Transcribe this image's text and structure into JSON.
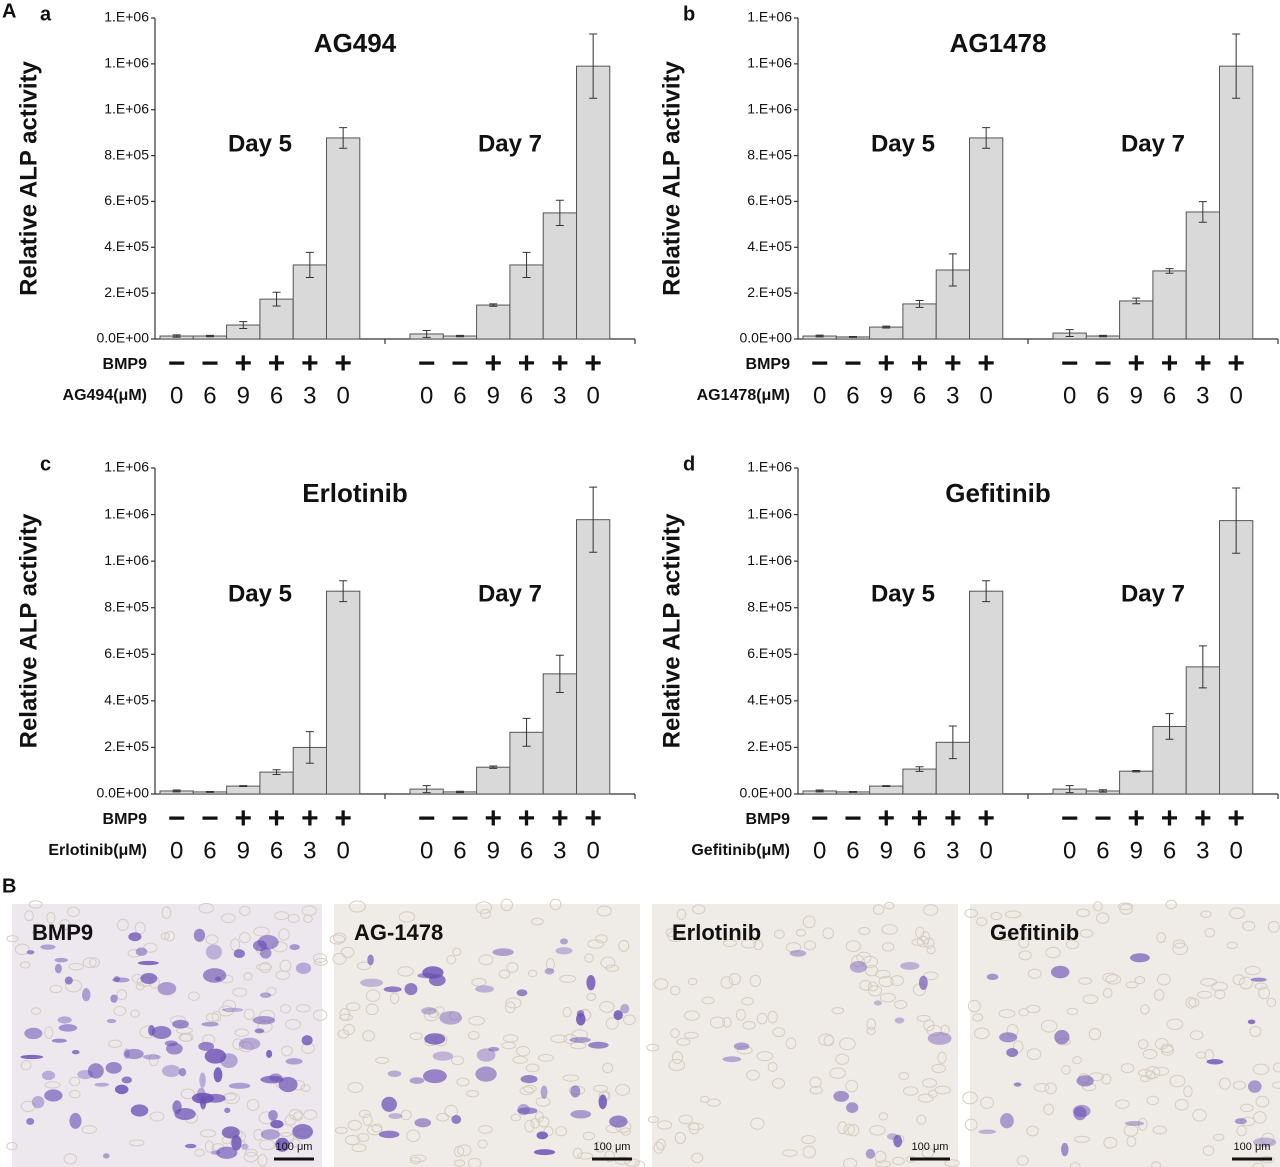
{
  "panel_A": "A",
  "panel_B": "B",
  "chart_data": [
    {
      "type": "bar",
      "panel": "a",
      "title": "AG494",
      "y_label": "Relative ALP activity",
      "row_labels": [
        "BMP9",
        "AG494(μM)"
      ],
      "bmp9": [
        "−",
        "−",
        "+",
        "+",
        "+",
        "+"
      ],
      "categories": [
        "0",
        "6",
        "9",
        "6",
        "3",
        "0"
      ],
      "color": "#d9d9d9",
      "series": [
        {
          "name": "Day 5",
          "values": [
            13000,
            13000,
            61000,
            174000,
            323000,
            877000
          ],
          "errors": [
            5000,
            3000,
            15000,
            30000,
            55000,
            45000
          ]
        },
        {
          "name": "Day 7",
          "values": [
            22000,
            13000,
            148000,
            323000,
            550000,
            1190000
          ],
          "errors": [
            15000,
            3000,
            5000,
            55000,
            55000,
            140000
          ]
        }
      ],
      "ylim": [
        0,
        1400000
      ],
      "yticks": [
        {
          "value": 0,
          "label": "0.0E+00"
        },
        {
          "value": 200000,
          "label": "2.E+05"
        },
        {
          "value": 400000,
          "label": "4.E+05"
        },
        {
          "value": 600000,
          "label": "6.E+05"
        },
        {
          "value": 800000,
          "label": "8.E+05"
        },
        {
          "value": 1000000,
          "label": "1.E+06"
        },
        {
          "value": 1200000,
          "label": "1.E+06"
        },
        {
          "value": 1400000,
          "label": "1.E+06"
        }
      ]
    },
    {
      "type": "bar",
      "panel": "b",
      "title": "AG1478",
      "y_label": "Relative ALP activity",
      "row_labels": [
        "BMP9",
        "AG1478(μM)"
      ],
      "bmp9": [
        "−",
        "−",
        "+",
        "+",
        "+",
        "+"
      ],
      "categories": [
        "0",
        "6",
        "9",
        "6",
        "3",
        "0"
      ],
      "color": "#d9d9d9",
      "series": [
        {
          "name": "Day 5",
          "values": [
            13000,
            9000,
            52000,
            153000,
            301000,
            877000
          ],
          "errors": [
            4000,
            2000,
            4000,
            15000,
            70000,
            45000
          ]
        },
        {
          "name": "Day 7",
          "values": [
            26000,
            13000,
            166000,
            297000,
            554000,
            1190000
          ],
          "errors": [
            15000,
            3000,
            12000,
            10000,
            45000,
            140000
          ]
        }
      ],
      "ylim": [
        0,
        1400000
      ],
      "yticks": [
        {
          "value": 0,
          "label": "0.0E+00"
        },
        {
          "value": 200000,
          "label": "2.E+05"
        },
        {
          "value": 400000,
          "label": "4.E+05"
        },
        {
          "value": 600000,
          "label": "6.E+05"
        },
        {
          "value": 800000,
          "label": "8.E+05"
        },
        {
          "value": 1000000,
          "label": "1.E+06"
        },
        {
          "value": 1200000,
          "label": "1.E+06"
        },
        {
          "value": 1400000,
          "label": "1.E+06"
        }
      ]
    },
    {
      "type": "bar",
      "panel": "c",
      "title": "Erlotinib",
      "y_label": "Relative ALP activity",
      "row_labels": [
        "BMP9",
        "Erlotinib(μM)"
      ],
      "bmp9": [
        "−",
        "−",
        "+",
        "+",
        "+",
        "+"
      ],
      "categories": [
        "0",
        "6",
        "9",
        "6",
        "3",
        "0"
      ],
      "color": "#d9d9d9",
      "series": [
        {
          "name": "Day 5",
          "values": [
            13000,
            9000,
            34000,
            94000,
            200000,
            871000
          ],
          "errors": [
            4000,
            2000,
            2000,
            10000,
            68000,
            45000
          ]
        },
        {
          "name": "Day 7",
          "values": [
            21000,
            9000,
            115000,
            265000,
            516000,
            1178000
          ],
          "errors": [
            15000,
            3000,
            5000,
            60000,
            80000,
            140000
          ]
        }
      ],
      "ylim": [
        0,
        1400000
      ],
      "yticks": [
        {
          "value": 0,
          "label": "0.0E+00"
        },
        {
          "value": 200000,
          "label": "2.E+05"
        },
        {
          "value": 400000,
          "label": "4.E+05"
        },
        {
          "value": 600000,
          "label": "6.E+05"
        },
        {
          "value": 800000,
          "label": "8.E+05"
        },
        {
          "value": 1000000,
          "label": "1.E+06"
        },
        {
          "value": 1200000,
          "label": "1.E+06"
        },
        {
          "value": 1400000,
          "label": "1.E+06"
        }
      ]
    },
    {
      "type": "bar",
      "panel": "d",
      "title": "Gefitinib",
      "y_label": "Relative ALP activity",
      "row_labels": [
        "BMP9",
        "Gefitinib(μM)"
      ],
      "bmp9": [
        "−",
        "−",
        "+",
        "+",
        "+",
        "+"
      ],
      "categories": [
        "0",
        "6",
        "9",
        "6",
        "3",
        "0"
      ],
      "color": "#d9d9d9",
      "series": [
        {
          "name": "Day 5",
          "values": [
            13000,
            9000,
            34000,
            107000,
            222000,
            871000
          ],
          "errors": [
            4000,
            2000,
            2000,
            10000,
            70000,
            45000
          ]
        },
        {
          "name": "Day 7",
          "values": [
            21000,
            13000,
            98000,
            290000,
            546000,
            1174000
          ],
          "errors": [
            15000,
            5000,
            3000,
            55000,
            90000,
            140000
          ]
        }
      ],
      "ylim": [
        0,
        1400000
      ],
      "yticks": [
        {
          "value": 0,
          "label": "0.0E+00"
        },
        {
          "value": 200000,
          "label": "2.E+05"
        },
        {
          "value": 400000,
          "label": "4.E+05"
        },
        {
          "value": 600000,
          "label": "6.E+05"
        },
        {
          "value": 800000,
          "label": "8.E+05"
        },
        {
          "value": 1000000,
          "label": "1.E+06"
        },
        {
          "value": 1200000,
          "label": "1.E+06"
        },
        {
          "value": 1400000,
          "label": "1.E+06"
        }
      ]
    }
  ],
  "micrographs": [
    {
      "label": "BMP9",
      "scale_bar": "100 μm"
    },
    {
      "label": "AG-1478",
      "scale_bar": "100 μm"
    },
    {
      "label": "Erlotinib",
      "scale_bar": "100 μm"
    },
    {
      "label": "Gefitinib",
      "scale_bar": "100 μm"
    }
  ]
}
